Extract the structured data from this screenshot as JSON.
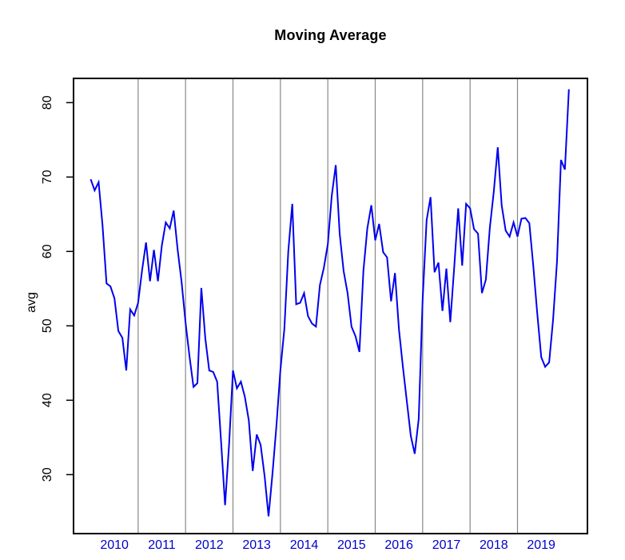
{
  "chart_data": {
    "type": "line",
    "title": "Moving Average",
    "xlabel": "",
    "ylabel": "avg",
    "yticks": [
      30,
      40,
      50,
      60,
      70,
      80
    ],
    "ylim": [
      22,
      83.5
    ],
    "x_year_labels": [
      "2010",
      "2011",
      "2012",
      "2013",
      "2014",
      "2015",
      "2016",
      "2017",
      "2018",
      "2019"
    ],
    "x_start": "2010-01",
    "x_end": "2020-02",
    "frequency": "monthly",
    "n_points": 122,
    "grid": "vertical gray lines at each January 2011-2019",
    "legend": "none",
    "series": [
      {
        "name": "avg",
        "values": [
          69.7,
          68.2,
          69.3,
          63.5,
          55.7,
          55.3,
          53.7,
          49.3,
          48.4,
          44.0,
          52.2,
          51.4,
          53.1,
          57.5,
          61.2,
          56.0,
          60.2,
          56.0,
          60.8,
          63.9,
          63.1,
          65.5,
          60.2,
          55.9,
          50.4,
          45.9,
          41.8,
          42.3,
          55.1,
          48.3,
          44.0,
          43.8,
          42.5,
          34.3,
          25.9,
          34.0,
          44.0,
          41.6,
          42.5,
          40.5,
          37.3,
          30.5,
          35.4,
          34.0,
          29.8,
          24.4,
          30.1,
          36.6,
          44.0,
          49.6,
          60.0,
          66.4,
          52.9,
          53.1,
          54.4,
          51.3,
          50.3,
          49.9,
          55.5,
          57.8,
          61.0,
          67.5,
          71.6,
          62.4,
          57.4,
          54.4,
          49.9,
          48.6,
          46.5,
          57.4,
          63.1,
          66.2,
          61.5,
          63.7,
          59.9,
          59.2,
          53.3,
          57.1,
          49.5,
          44.5,
          39.8,
          35.2,
          32.8,
          37.5,
          53.5,
          64.2,
          67.3,
          57.2,
          58.5,
          52.0,
          57.7,
          50.5,
          58.0,
          65.8,
          58.1,
          66.4,
          65.8,
          63.0,
          62.4,
          54.4,
          56.2,
          63.2,
          68.0,
          74.0,
          66.2,
          62.8,
          62.0,
          63.9,
          62.0,
          64.4,
          64.5,
          63.8,
          58.0,
          51.7,
          45.8,
          44.5,
          45.1,
          50.8,
          58.6,
          72.3,
          71.0,
          81.8
        ]
      }
    ],
    "colors": {
      "line": "#0000EE",
      "x_tick_labels": "#0000CD",
      "grid": "#878787",
      "box": "#000000",
      "title": "#000000"
    }
  }
}
